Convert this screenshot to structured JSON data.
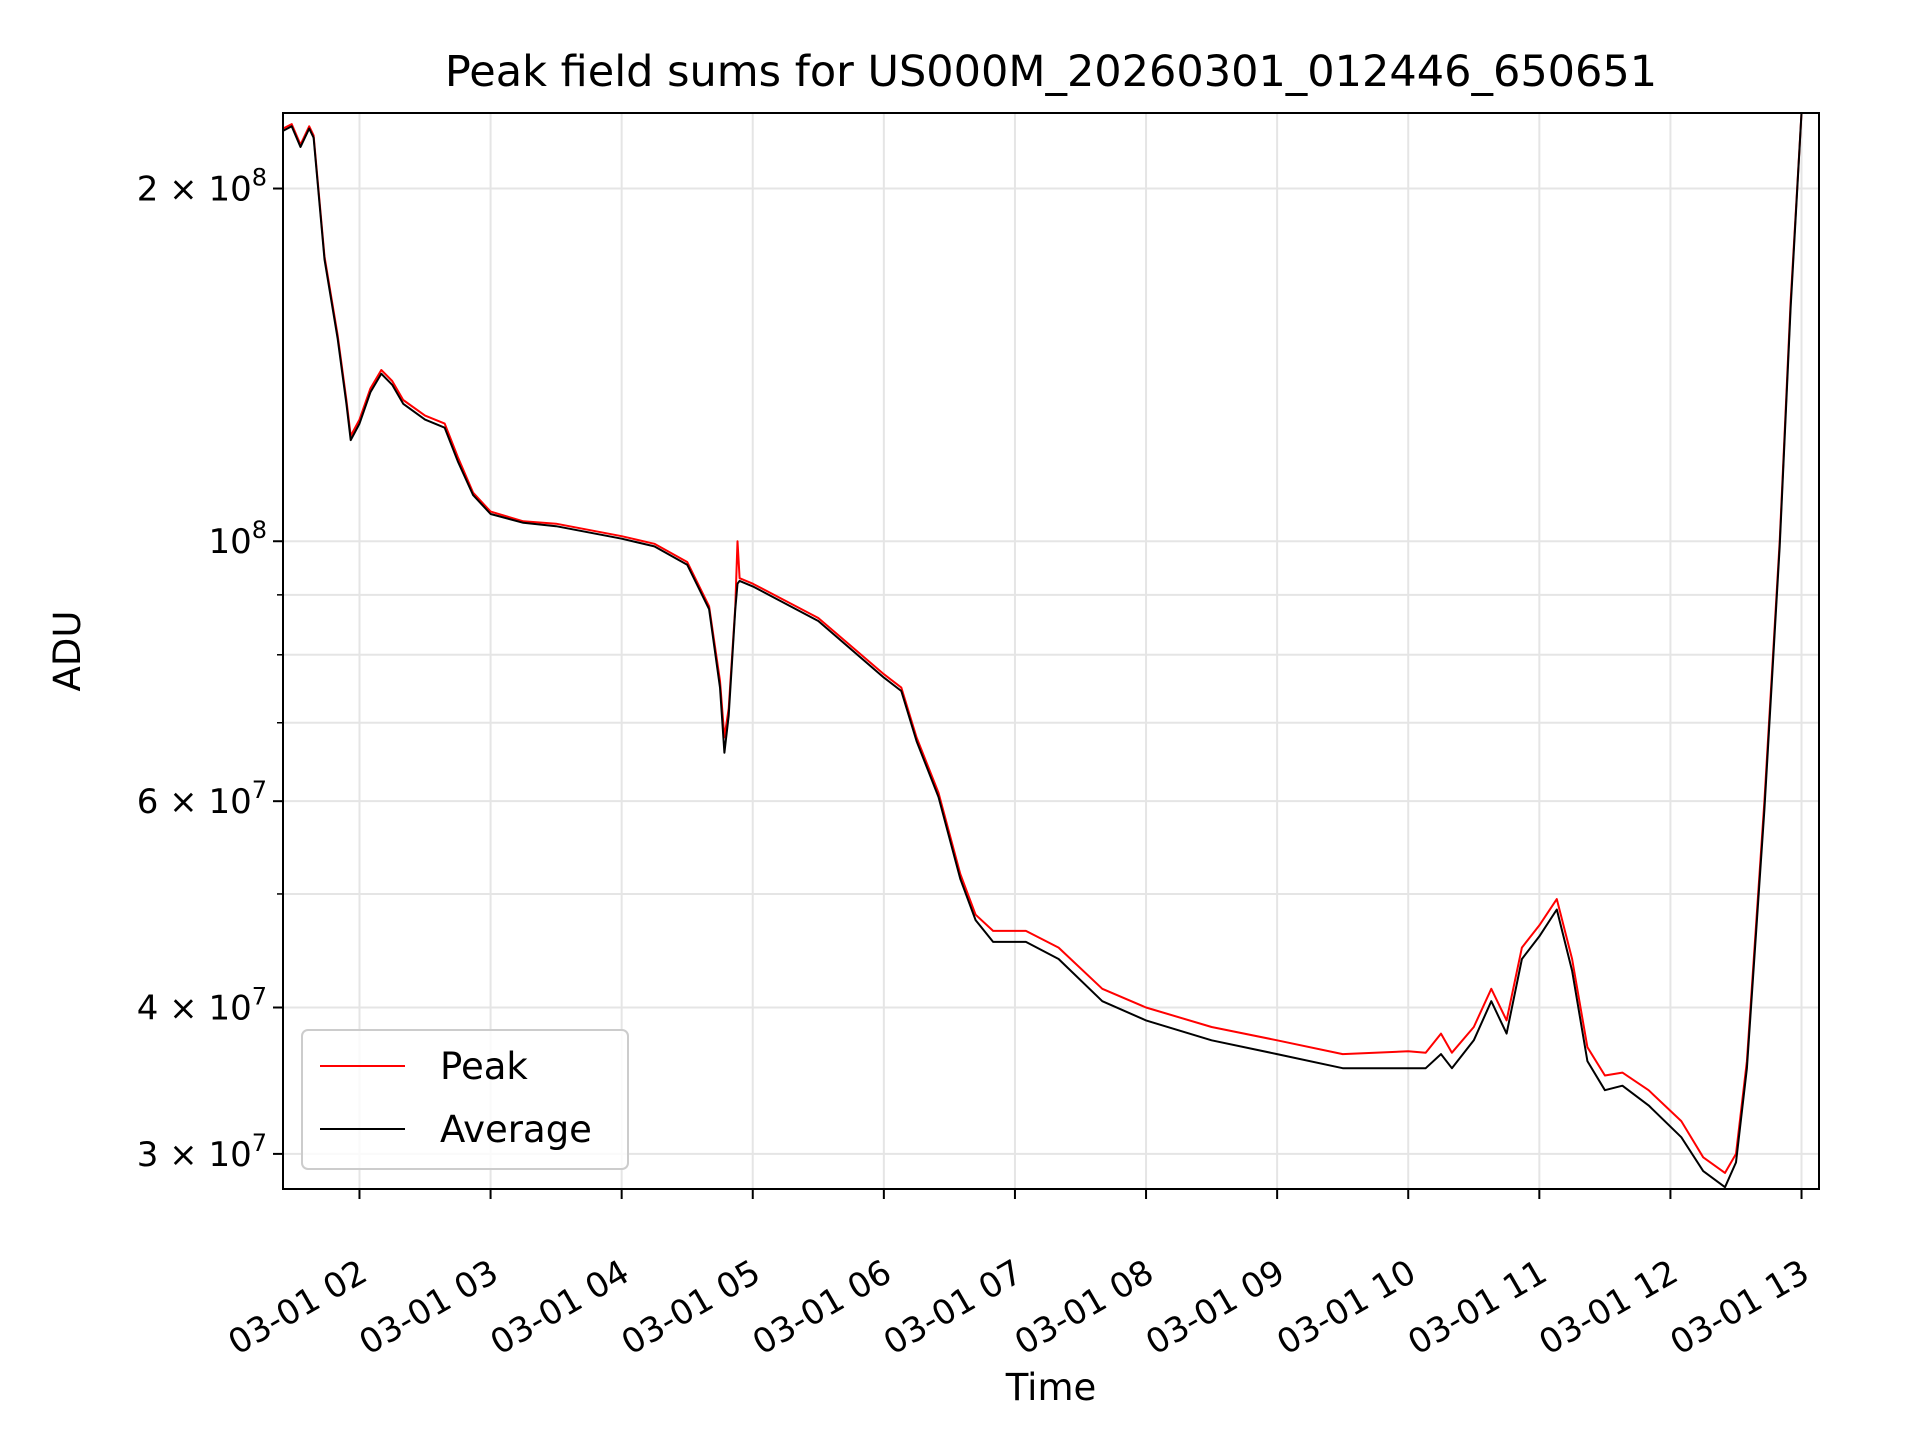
{
  "chart_data": {
    "type": "line",
    "title": "Peak field sums for US000M_20260301_012446_650651",
    "xlabel": "Time",
    "ylabel": "ADU",
    "yscale": "log",
    "xlim": [
      "03-01 01:25",
      "03-01 13:08"
    ],
    "ylim": [
      28000000,
      232000000
    ],
    "grid": true,
    "legend_position": "lower-left",
    "x_ticks": [
      "03-01 02",
      "03-01 03",
      "03-01 04",
      "03-01 05",
      "03-01 06",
      "03-01 07",
      "03-01 08",
      "03-01 09",
      "03-01 10",
      "03-01 11",
      "03-01 12",
      "03-01 13"
    ],
    "y_ticks": [
      {
        "value": 30000000,
        "mantissa": "3",
        "exponent": "7"
      },
      {
        "value": 40000000,
        "mantissa": "4",
        "exponent": "7"
      },
      {
        "value": 60000000,
        "mantissa": "6",
        "exponent": "7"
      },
      {
        "value": 100000000,
        "mantissa": "",
        "exponent": "8"
      },
      {
        "value": 200000000,
        "mantissa": "2",
        "exponent": "8"
      }
    ],
    "y_minor_ticks": [
      50000000,
      70000000,
      80000000,
      90000000
    ],
    "series": [
      {
        "name": "Peak",
        "color": "#ff0000",
        "points": [
          [
            "03-01 01:25",
            225000000
          ],
          [
            "03-01 01:29",
            227000000
          ],
          [
            "03-01 01:33",
            218000000
          ],
          [
            "03-01 01:37",
            226000000
          ],
          [
            "03-01 01:39",
            222000000
          ],
          [
            "03-01 01:44",
            175000000
          ],
          [
            "03-01 01:50",
            150000000
          ],
          [
            "03-01 01:54",
            132000000
          ],
          [
            "03-01 01:56",
            123000000
          ],
          [
            "03-01 02:00",
            127000000
          ],
          [
            "03-01 02:05",
            135000000
          ],
          [
            "03-01 02:10",
            140000000
          ],
          [
            "03-01 02:15",
            137000000
          ],
          [
            "03-01 02:20",
            132000000
          ],
          [
            "03-01 02:30",
            128000000
          ],
          [
            "03-01 02:39",
            126000000
          ],
          [
            "03-01 02:45",
            118000000
          ],
          [
            "03-01 02:52",
            110000000
          ],
          [
            "03-01 03:00",
            106000000
          ],
          [
            "03-01 03:15",
            104000000
          ],
          [
            "03-01 03:30",
            103500000
          ],
          [
            "03-01 04:00",
            101000000
          ],
          [
            "03-01 04:15",
            99500000
          ],
          [
            "03-01 04:30",
            96000000
          ],
          [
            "03-01 04:40",
            88000000
          ],
          [
            "03-01 04:45",
            76000000
          ],
          [
            "03-01 04:47",
            68000000
          ],
          [
            "03-01 04:49",
            72000000
          ],
          [
            "03-01 04:52",
            88000000
          ],
          [
            "03-01 04:53",
            100000000
          ],
          [
            "03-01 04:54",
            93000000
          ],
          [
            "03-01 05:00",
            92000000
          ],
          [
            "03-01 05:30",
            86000000
          ],
          [
            "03-01 06:00",
            77000000
          ],
          [
            "03-01 06:08",
            75000000
          ],
          [
            "03-01 06:15",
            68000000
          ],
          [
            "03-01 06:25",
            61000000
          ],
          [
            "03-01 06:35",
            52000000
          ],
          [
            "03-01 06:42",
            48000000
          ],
          [
            "03-01 06:50",
            46500000
          ],
          [
            "03-01 07:05",
            46500000
          ],
          [
            "03-01 07:20",
            45000000
          ],
          [
            "03-01 07:40",
            41500000
          ],
          [
            "03-01 08:00",
            40000000
          ],
          [
            "03-01 08:30",
            38500000
          ],
          [
            "03-01 09:00",
            37500000
          ],
          [
            "03-01 09:30",
            36500000
          ],
          [
            "03-01 10:00",
            36700000
          ],
          [
            "03-01 10:08",
            36600000
          ],
          [
            "03-01 10:15",
            38000000
          ],
          [
            "03-01 10:20",
            36600000
          ],
          [
            "03-01 10:30",
            38500000
          ],
          [
            "03-01 10:38",
            41500000
          ],
          [
            "03-01 10:45",
            39000000
          ],
          [
            "03-01 10:52",
            45000000
          ],
          [
            "03-01 11:00",
            47000000
          ],
          [
            "03-01 11:08",
            49500000
          ],
          [
            "03-01 11:15",
            44000000
          ],
          [
            "03-01 11:22",
            37000000
          ],
          [
            "03-01 11:30",
            35000000
          ],
          [
            "03-01 11:38",
            35200000
          ],
          [
            "03-01 11:50",
            34000000
          ],
          [
            "03-01 12:05",
            32000000
          ],
          [
            "03-01 12:15",
            29800000
          ],
          [
            "03-01 12:25",
            28900000
          ],
          [
            "03-01 12:30",
            30000000
          ],
          [
            "03-01 12:35",
            36000000
          ],
          [
            "03-01 12:43",
            60000000
          ],
          [
            "03-01 12:50",
            100000000
          ],
          [
            "03-01 12:55",
            160000000
          ],
          [
            "03-01 13:00",
            232000000
          ]
        ]
      },
      {
        "name": "Average",
        "color": "#000000",
        "points": [
          [
            "03-01 01:25",
            224000000
          ],
          [
            "03-01 01:29",
            226000000
          ],
          [
            "03-01 01:33",
            217000000
          ],
          [
            "03-01 01:37",
            225000000
          ],
          [
            "03-01 01:39",
            221000000
          ],
          [
            "03-01 01:44",
            174000000
          ],
          [
            "03-01 01:50",
            149000000
          ],
          [
            "03-01 01:54",
            131000000
          ],
          [
            "03-01 01:56",
            122000000
          ],
          [
            "03-01 02:00",
            126000000
          ],
          [
            "03-01 02:05",
            134000000
          ],
          [
            "03-01 02:10",
            139000000
          ],
          [
            "03-01 02:15",
            136000000
          ],
          [
            "03-01 02:20",
            131000000
          ],
          [
            "03-01 02:30",
            127000000
          ],
          [
            "03-01 02:39",
            125000000
          ],
          [
            "03-01 02:45",
            117000000
          ],
          [
            "03-01 02:52",
            109500000
          ],
          [
            "03-01 03:00",
            105500000
          ],
          [
            "03-01 03:15",
            103700000
          ],
          [
            "03-01 03:30",
            103000000
          ],
          [
            "03-01 04:00",
            100500000
          ],
          [
            "03-01 04:15",
            99000000
          ],
          [
            "03-01 04:30",
            95500000
          ],
          [
            "03-01 04:40",
            87500000
          ],
          [
            "03-01 04:45",
            75000000
          ],
          [
            "03-01 04:47",
            66000000
          ],
          [
            "03-01 04:49",
            71000000
          ],
          [
            "03-01 04:52",
            87500000
          ],
          [
            "03-01 04:53",
            92000000
          ],
          [
            "03-01 04:54",
            92500000
          ],
          [
            "03-01 05:00",
            91500000
          ],
          [
            "03-01 05:30",
            85500000
          ],
          [
            "03-01 06:00",
            76500000
          ],
          [
            "03-01 06:08",
            74500000
          ],
          [
            "03-01 06:15",
            67500000
          ],
          [
            "03-01 06:25",
            60500000
          ],
          [
            "03-01 06:35",
            51500000
          ],
          [
            "03-01 06:42",
            47500000
          ],
          [
            "03-01 06:50",
            45500000
          ],
          [
            "03-01 07:05",
            45500000
          ],
          [
            "03-01 07:20",
            44000000
          ],
          [
            "03-01 07:40",
            40500000
          ],
          [
            "03-01 08:00",
            39000000
          ],
          [
            "03-01 08:30",
            37500000
          ],
          [
            "03-01 09:00",
            36500000
          ],
          [
            "03-01 09:30",
            35500000
          ],
          [
            "03-01 10:00",
            35500000
          ],
          [
            "03-01 10:08",
            35500000
          ],
          [
            "03-01 10:15",
            36500000
          ],
          [
            "03-01 10:20",
            35500000
          ],
          [
            "03-01 10:30",
            37500000
          ],
          [
            "03-01 10:38",
            40500000
          ],
          [
            "03-01 10:45",
            38000000
          ],
          [
            "03-01 10:52",
            44000000
          ],
          [
            "03-01 11:00",
            46000000
          ],
          [
            "03-01 11:08",
            48500000
          ],
          [
            "03-01 11:15",
            43000000
          ],
          [
            "03-01 11:22",
            36000000
          ],
          [
            "03-01 11:30",
            34000000
          ],
          [
            "03-01 11:38",
            34300000
          ],
          [
            "03-01 11:50",
            33000000
          ],
          [
            "03-01 12:05",
            31000000
          ],
          [
            "03-01 12:15",
            29000000
          ],
          [
            "03-01 12:25",
            28100000
          ],
          [
            "03-01 12:30",
            29500000
          ],
          [
            "03-01 12:35",
            35500000
          ],
          [
            "03-01 12:43",
            59000000
          ],
          [
            "03-01 12:50",
            99000000
          ],
          [
            "03-01 12:55",
            158000000
          ],
          [
            "03-01 13:00",
            232000000
          ]
        ]
      }
    ]
  }
}
